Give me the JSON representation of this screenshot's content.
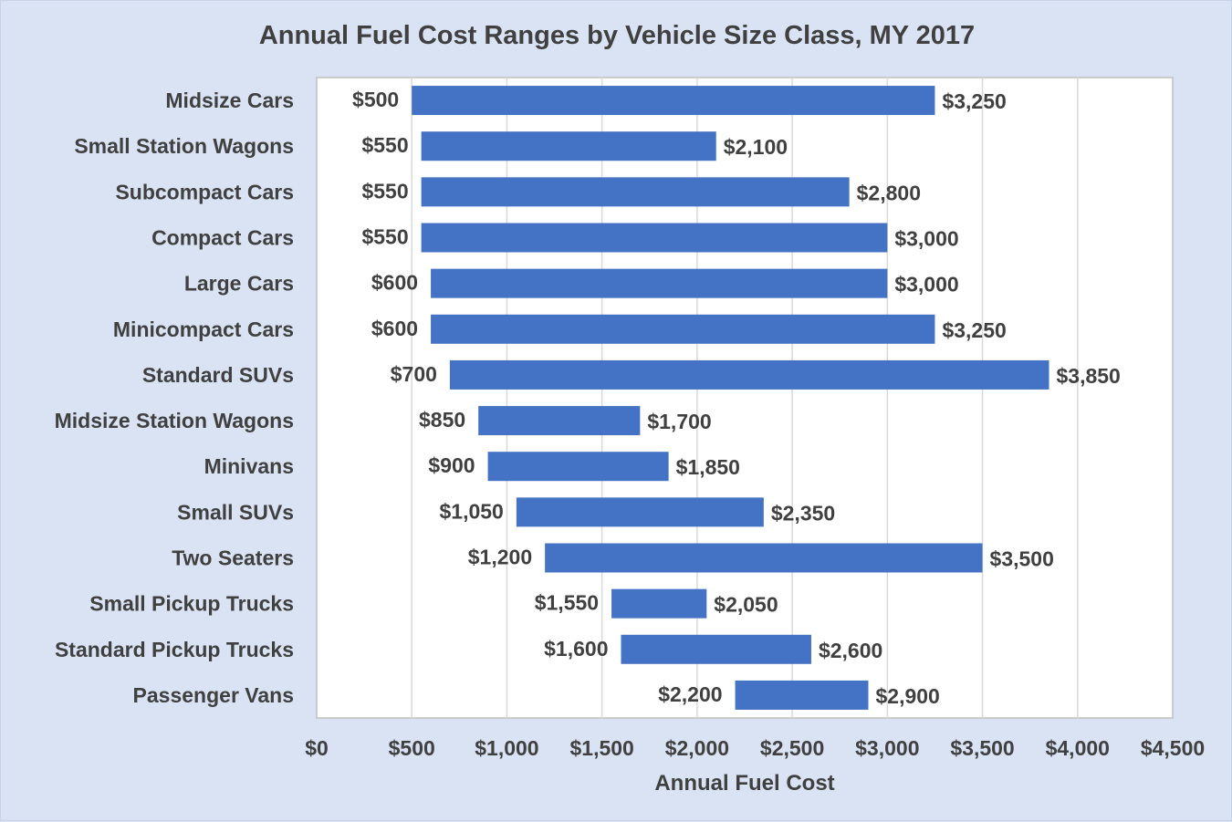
{
  "chart_data": {
    "type": "bar",
    "orientation": "horizontal-floating-range",
    "title": "Annual Fuel Cost Ranges by Vehicle Size Class, MY 2017",
    "xlabel": "Annual Fuel Cost",
    "ylabel": "",
    "xlim": [
      0,
      4500
    ],
    "x_tick_step": 500,
    "x_ticks": [
      "$0",
      "$500",
      "$1,000",
      "$1,500",
      "$2,000",
      "$2,500",
      "$3,000",
      "$3,500",
      "$4,000",
      "$4,500"
    ],
    "grid": true,
    "bar_color": "#4472c4",
    "categories": [
      "Midsize Cars",
      "Small Station Wagons",
      "Subcompact Cars",
      "Compact Cars",
      "Large Cars",
      "Minicompact Cars",
      "Standard SUVs",
      "Midsize Station Wagons",
      "Minivans",
      "Small SUVs",
      "Two Seaters",
      "Small Pickup Trucks",
      "Standard Pickup Trucks",
      "Passenger Vans"
    ],
    "series": [
      {
        "name": "Min",
        "values": [
          500,
          550,
          550,
          550,
          600,
          600,
          700,
          850,
          900,
          1050,
          1200,
          1550,
          1600,
          2200
        ]
      },
      {
        "name": "Max",
        "values": [
          3250,
          2100,
          2800,
          3000,
          3000,
          3250,
          3850,
          1700,
          1850,
          2350,
          3500,
          2050,
          2600,
          2900
        ]
      }
    ],
    "min_labels": [
      "$500",
      "$550",
      "$550",
      "$550",
      "$600",
      "$600",
      "$700",
      "$850",
      "$900",
      "$1,050",
      "$1,200",
      "$1,550",
      "$1,600",
      "$2,200"
    ],
    "max_labels": [
      "$3,250",
      "$2,100",
      "$2,800",
      "$3,000",
      "$3,000",
      "$3,250",
      "$3,850",
      "$1,700",
      "$1,850",
      "$2,350",
      "$3,500",
      "$2,050",
      "$2,600",
      "$2,900"
    ]
  }
}
